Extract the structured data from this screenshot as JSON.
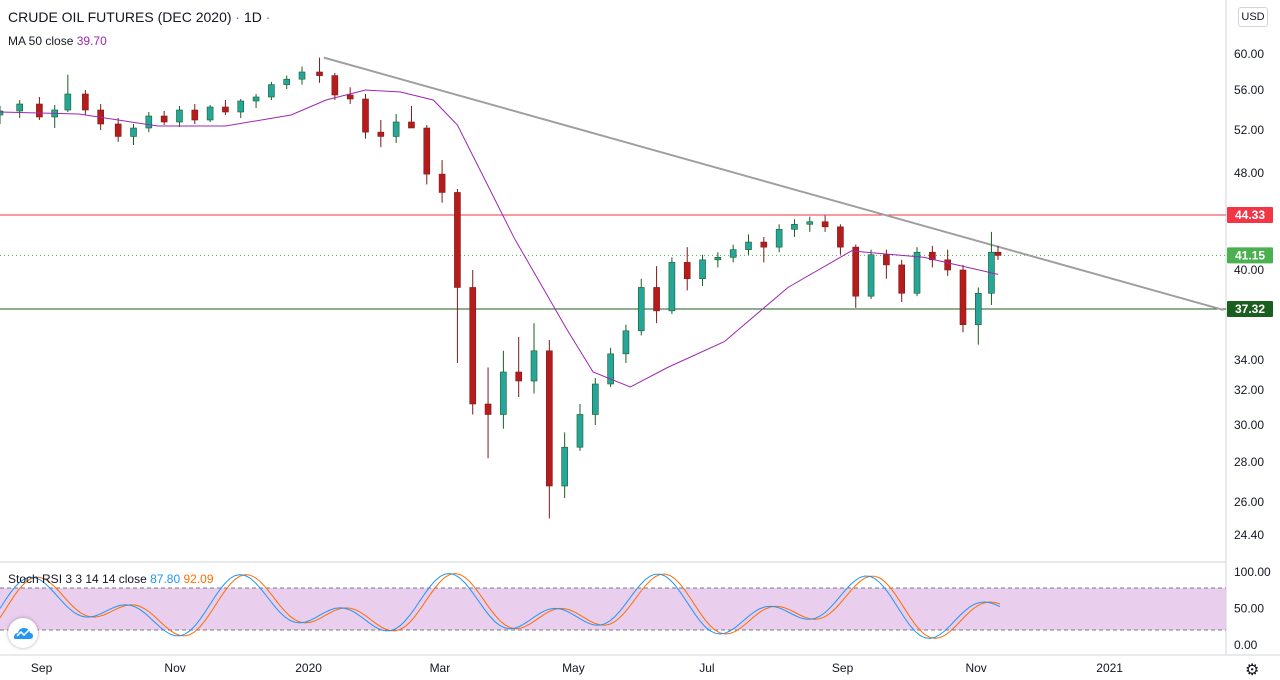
{
  "header": {
    "symbol_title": "CRUDE OIL FUTURES (DEC 2020)",
    "separator": "·",
    "interval": "1D",
    "ma_label": "MA 50 close",
    "ma_value": "39.70",
    "currency": "USD"
  },
  "stoch_rsi": {
    "label": "Stoch RSI 3 3 14 14 close",
    "k_value": "87.80",
    "d_value": "92.09",
    "axis_ticks": [
      "100.00",
      "50.00",
      "0.00"
    ],
    "k_color": "#2196f3",
    "d_color": "#ff6d00",
    "band_color": "#e1bee7",
    "upper_band": 80,
    "lower_band": 20
  },
  "chart_data": {
    "type": "candlestick",
    "title": "CRUDE OIL FUTURES (DEC 2020)",
    "price_axis_ticks": [
      60.0,
      56.0,
      52.0,
      48.0,
      40.0,
      34.0,
      32.0,
      30.0,
      28.0,
      26.0,
      24.4
    ],
    "time_axis_labels": [
      "Sep",
      "Nov",
      "2020",
      "Mar",
      "May",
      "Jul",
      "Sep",
      "Nov",
      "2021"
    ],
    "ylim": [
      23.3,
      66
    ],
    "price_labels": [
      {
        "value": 44.33,
        "color": "#f23645",
        "text": "44.33"
      },
      {
        "value": 41.15,
        "color": "#4caf50",
        "text": "41.15"
      },
      {
        "value": 37.32,
        "color": "#1b5e20",
        "text": "37.32"
      }
    ],
    "horizontal_lines": [
      {
        "value": 44.33,
        "color": "#f23645"
      },
      {
        "value": 37.32,
        "color": "#1b5e20"
      }
    ],
    "trendline": {
      "from": {
        "date": "2020-01-08",
        "price": 59.6
      },
      "to": {
        "date": "2020-12-31",
        "price": 37.0
      },
      "color": "#9e9e9e"
    },
    "ma50_points": [
      {
        "date": "2019-08-13",
        "price": 53.8
      },
      {
        "date": "2019-09-18",
        "price": 53.6
      },
      {
        "date": "2019-10-24",
        "price": 52.4
      },
      {
        "date": "2019-11-24",
        "price": 52.4
      },
      {
        "date": "2019-12-24",
        "price": 53.5
      },
      {
        "date": "2020-01-09",
        "price": 55.0
      },
      {
        "date": "2020-01-27",
        "price": 56.0
      },
      {
        "date": "2020-02-12",
        "price": 55.8
      },
      {
        "date": "2020-02-27",
        "price": 55.0
      },
      {
        "date": "2020-03-09",
        "price": 52.5
      },
      {
        "date": "2020-04-04",
        "price": 42.5
      },
      {
        "date": "2020-04-28",
        "price": 36.0
      },
      {
        "date": "2020-05-10",
        "price": 33.2
      },
      {
        "date": "2020-05-27",
        "price": 32.2
      },
      {
        "date": "2020-06-13",
        "price": 33.5
      },
      {
        "date": "2020-07-09",
        "price": 35.2
      },
      {
        "date": "2020-08-07",
        "price": 38.8
      },
      {
        "date": "2020-09-05",
        "price": 41.5
      },
      {
        "date": "2020-10-08",
        "price": 41.0
      },
      {
        "date": "2020-11-11",
        "price": 39.7
      }
    ],
    "candles": [
      [
        "2019-08-13",
        53.5,
        54.4,
        52.6,
        53.9
      ],
      [
        "2019-08-22",
        53.9,
        55.0,
        53.2,
        54.6
      ],
      [
        "2019-08-31",
        54.6,
        55.3,
        53.0,
        53.3
      ],
      [
        "2019-09-07",
        53.3,
        54.5,
        52.2,
        54.0
      ],
      [
        "2019-09-13",
        54.0,
        57.7,
        53.8,
        55.6
      ],
      [
        "2019-09-21",
        55.6,
        56.0,
        53.5,
        54.0
      ],
      [
        "2019-09-28",
        54.0,
        54.6,
        52.0,
        52.6
      ],
      [
        "2019-10-06",
        52.6,
        53.2,
        50.9,
        51.4
      ],
      [
        "2019-10-13",
        51.4,
        52.6,
        50.6,
        52.2
      ],
      [
        "2019-10-20",
        52.2,
        53.8,
        51.8,
        53.4
      ],
      [
        "2019-10-27",
        53.4,
        53.9,
        52.5,
        52.8
      ],
      [
        "2019-11-03",
        52.8,
        54.4,
        52.3,
        54.0
      ],
      [
        "2019-11-10",
        54.0,
        54.6,
        52.6,
        53.0
      ],
      [
        "2019-11-17",
        53.0,
        54.5,
        52.8,
        54.3
      ],
      [
        "2019-11-24",
        54.3,
        55.0,
        53.5,
        53.8
      ],
      [
        "2019-12-01",
        53.8,
        55.1,
        53.2,
        54.9
      ],
      [
        "2019-12-08",
        54.9,
        55.6,
        54.2,
        55.3
      ],
      [
        "2019-12-15",
        55.3,
        56.9,
        55.0,
        56.6
      ],
      [
        "2019-12-22",
        56.6,
        57.6,
        56.1,
        57.2
      ],
      [
        "2019-12-29",
        57.2,
        58.6,
        56.6,
        58.0
      ],
      [
        "2020-01-06",
        58.0,
        59.6,
        56.8,
        57.6
      ],
      [
        "2020-01-13",
        57.6,
        57.9,
        55.0,
        55.5
      ],
      [
        "2020-01-20",
        55.5,
        56.3,
        54.6,
        55.1
      ],
      [
        "2020-01-27",
        55.1,
        55.6,
        51.2,
        51.8
      ],
      [
        "2020-02-03",
        51.8,
        53.0,
        50.4,
        51.4
      ],
      [
        "2020-02-10",
        51.4,
        53.6,
        50.8,
        52.8
      ],
      [
        "2020-02-17",
        52.8,
        54.4,
        52.2,
        52.2
      ],
      [
        "2020-02-24",
        52.2,
        52.5,
        47.0,
        47.9
      ],
      [
        "2020-03-02",
        47.9,
        49.2,
        45.4,
        46.3
      ],
      [
        "2020-03-09",
        46.3,
        46.6,
        33.8,
        38.8
      ],
      [
        "2020-03-16",
        38.8,
        40.0,
        30.6,
        31.2
      ],
      [
        "2020-03-23",
        31.2,
        33.5,
        28.2,
        30.6
      ],
      [
        "2020-03-30",
        30.6,
        34.6,
        29.8,
        33.2
      ],
      [
        "2020-04-06",
        33.2,
        35.5,
        31.6,
        32.6
      ],
      [
        "2020-04-13",
        32.6,
        36.4,
        31.8,
        34.6
      ],
      [
        "2020-04-20",
        34.6,
        35.3,
        25.2,
        26.8
      ],
      [
        "2020-04-27",
        26.8,
        29.6,
        26.2,
        28.8
      ],
      [
        "2020-05-04",
        28.8,
        31.2,
        28.6,
        30.6
      ],
      [
        "2020-05-11",
        30.6,
        32.8,
        30.0,
        32.4
      ],
      [
        "2020-05-18",
        32.4,
        34.8,
        32.2,
        34.4
      ],
      [
        "2020-05-25",
        34.4,
        36.3,
        33.8,
        35.9
      ],
      [
        "2020-06-01",
        35.9,
        39.4,
        35.6,
        38.8
      ],
      [
        "2020-06-08",
        38.8,
        40.3,
        36.4,
        37.2
      ],
      [
        "2020-06-15",
        37.2,
        41.0,
        37.0,
        40.6
      ],
      [
        "2020-06-22",
        40.6,
        41.8,
        38.6,
        39.4
      ],
      [
        "2020-06-29",
        39.4,
        41.2,
        38.9,
        40.8
      ],
      [
        "2020-07-06",
        40.8,
        41.4,
        40.2,
        41.0
      ],
      [
        "2020-07-13",
        41.0,
        42.0,
        40.6,
        41.6
      ],
      [
        "2020-07-20",
        41.6,
        42.8,
        41.2,
        42.2
      ],
      [
        "2020-07-27",
        42.2,
        42.6,
        40.6,
        41.8
      ],
      [
        "2020-08-03",
        41.8,
        43.6,
        41.4,
        43.2
      ],
      [
        "2020-08-10",
        43.2,
        44.0,
        42.6,
        43.6
      ],
      [
        "2020-08-17",
        43.6,
        44.2,
        43.0,
        43.8
      ],
      [
        "2020-08-24",
        43.8,
        44.3,
        43.0,
        43.4
      ],
      [
        "2020-08-31",
        43.4,
        43.6,
        41.2,
        41.8
      ],
      [
        "2020-09-07",
        41.8,
        42.0,
        37.4,
        38.2
      ],
      [
        "2020-09-14",
        38.2,
        41.6,
        38.0,
        41.2
      ],
      [
        "2020-09-21",
        41.2,
        41.6,
        39.4,
        40.4
      ],
      [
        "2020-09-28",
        40.4,
        40.8,
        37.8,
        38.4
      ],
      [
        "2020-10-05",
        38.4,
        41.8,
        38.2,
        41.4
      ],
      [
        "2020-10-12",
        41.4,
        41.9,
        40.2,
        40.8
      ],
      [
        "2020-10-19",
        40.8,
        41.6,
        39.6,
        40.0
      ],
      [
        "2020-10-26",
        40.0,
        40.4,
        35.8,
        36.3
      ],
      [
        "2020-11-02",
        36.3,
        38.8,
        35.0,
        38.4
      ],
      [
        "2020-11-08",
        38.4,
        43.0,
        37.6,
        41.4
      ],
      [
        "2020-11-11",
        41.4,
        41.9,
        40.8,
        41.15
      ]
    ]
  }
}
